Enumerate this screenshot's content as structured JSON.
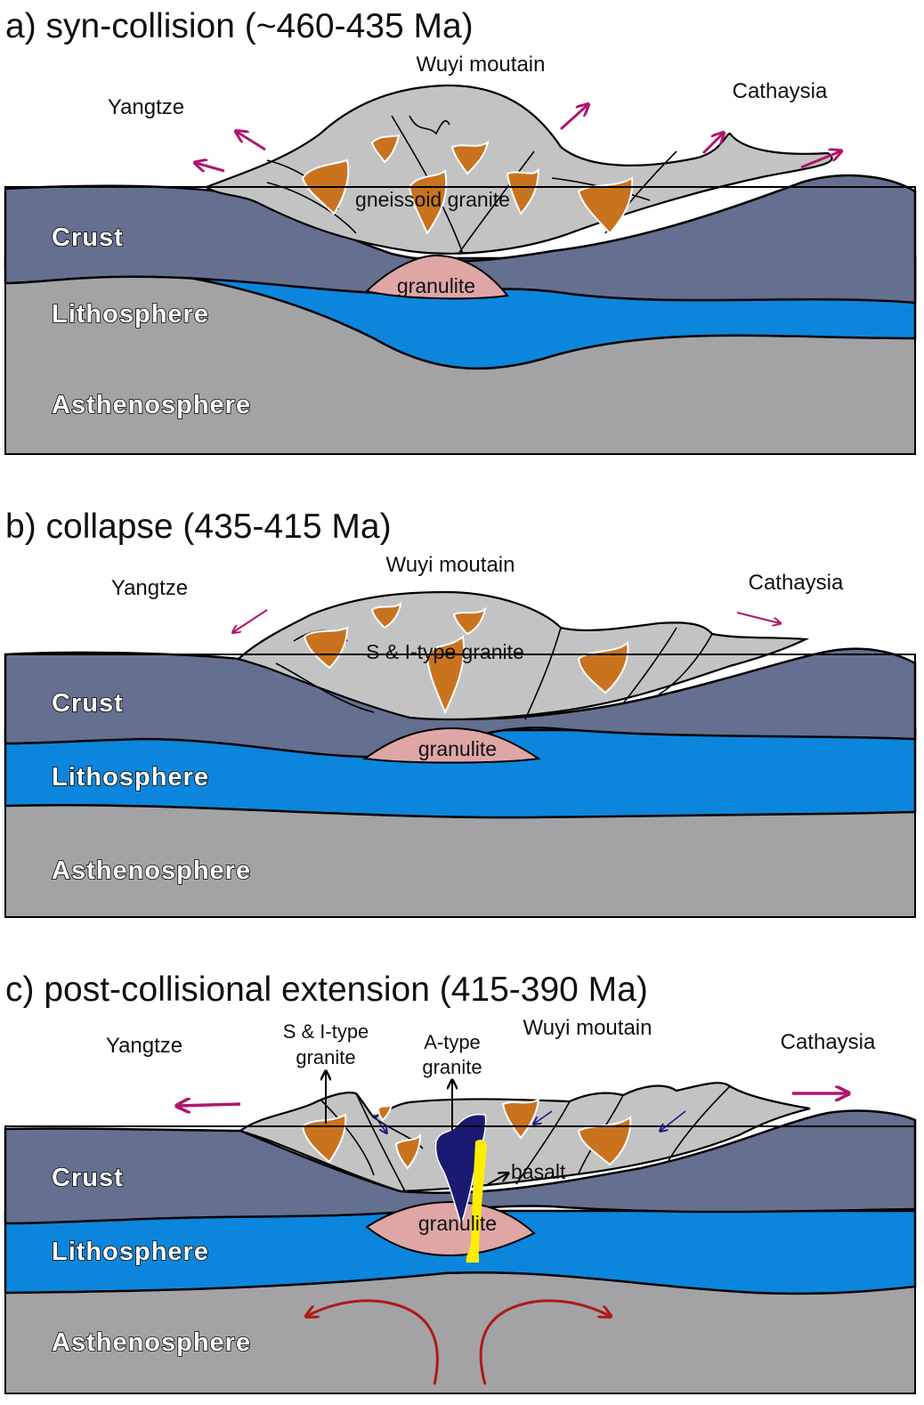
{
  "panels": [
    {
      "title": "a) syn-collision (~460-435 Ma)",
      "mountain": "Wuyi moutain",
      "left_block": "Yangtze",
      "right_block": "Cathaysia",
      "granite_label": "gneissoid granite",
      "granulite_label": "granulite",
      "layers": {
        "crust": "Crust",
        "lithosphere": "Lithosphere",
        "asthenosphere": "Asthenosphere"
      }
    },
    {
      "title": "b) collapse (435-415 Ma)",
      "mountain": "Wuyi moutain",
      "left_block": "Yangtze",
      "right_block": "Cathaysia",
      "granite_label": "S & I-type granite",
      "granulite_label": "granulite",
      "layers": {
        "crust": "Crust",
        "lithosphere": "Lithosphere",
        "asthenosphere": "Asthenosphere"
      }
    },
    {
      "title": "c) post-collisional extension (415-390 Ma)",
      "mountain": "Wuyi moutain",
      "left_block": "Yangtze",
      "right_block": "Cathaysia",
      "si_granite_line1": "S & I-type",
      "si_granite_line2": "granite",
      "a_granite_line1": "A-type",
      "a_granite_line2": "granite",
      "basalt_label": "basalt",
      "granulite_label": "granulite",
      "layers": {
        "crust": "Crust",
        "lithosphere": "Lithosphere",
        "asthenosphere": "Asthenosphere"
      }
    }
  ],
  "colors": {
    "crust": "#656f8f",
    "lithosphere": "#0b86dc",
    "asthenosphere": "#a3a3a5",
    "mountain_belt": "#c3c3c3",
    "granite": "#c9731f",
    "granulite": "#dfa6a6",
    "a_type_granite": "#1b1a72",
    "basalt": "#ffee00",
    "extension_arrow": "#b0156f",
    "mantle_flow_arrow": "#b01818",
    "slip_arrow": "#1a1a80"
  }
}
